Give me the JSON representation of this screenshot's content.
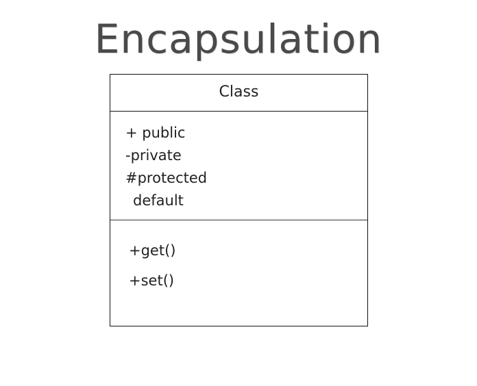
{
  "title": "Encapsulation",
  "uml_class": {
    "name": "Class",
    "attributes": [
      "+ public",
      "-private",
      "#protected",
      "default"
    ],
    "methods": [
      "+get()",
      "+set()"
    ]
  }
}
